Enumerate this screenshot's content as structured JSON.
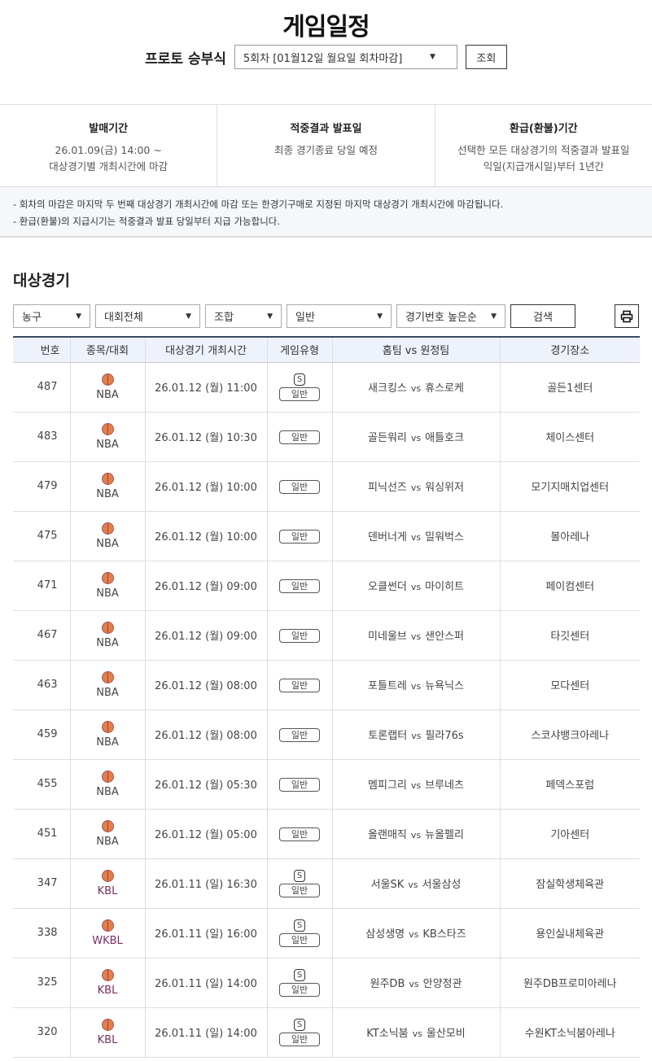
{
  "header": {
    "title": "게임일정",
    "round_label": "프로토 승부식",
    "round_value": "5회차 [01월12일 월요일 회차마감]",
    "query_button": "조회"
  },
  "info": [
    {
      "title": "발매기간",
      "lines": [
        "26.01.09(금) 14:00 ~",
        "대상경기별 개최시간에 마감"
      ]
    },
    {
      "title": "적중결과 발표일",
      "lines": [
        "최종 경기종료 당일 예정"
      ]
    },
    {
      "title": "환급(환불)기간",
      "lines": [
        "선택한 모든 대상경기의 적중결과 발표일",
        "익일(지급개시일)부터 1년간"
      ]
    }
  ],
  "notes": [
    "- 회차의 마감은 마지막 두 번째 대상경기 개최시간에 마감 또는 한경기구매로 지정된 마지막 대상경기 개최시간에 마감됩니다.",
    "- 환급(환불)의 지급시기는 적중결과 발표 당일부터 지급 가능합니다."
  ],
  "section_title": "대상경기",
  "filters": {
    "sport": "농구",
    "league": "대회전체",
    "combo": "조합",
    "type": "일반",
    "sort": "경기번호 높은순",
    "search_button": "검색"
  },
  "table": {
    "headers": [
      "번호",
      "종목/대회",
      "대상경기 개최시간",
      "게임유형",
      "홈팀 vs 원정팀",
      "경기장소"
    ],
    "vs": "vs",
    "s_badge": "S",
    "rows": [
      {
        "no": "487",
        "league": "NBA",
        "time": "26.01.12 (월) 11:00",
        "s": true,
        "type": "일반",
        "home": "새크킹스",
        "away": "휴스로케",
        "venue": "골든1센터"
      },
      {
        "no": "483",
        "league": "NBA",
        "time": "26.01.12 (월) 10:30",
        "s": false,
        "type": "일반",
        "home": "골든워리",
        "away": "애틀호크",
        "venue": "체이스센터"
      },
      {
        "no": "479",
        "league": "NBA",
        "time": "26.01.12 (월) 10:00",
        "s": false,
        "type": "일반",
        "home": "피닉선즈",
        "away": "워싱위저",
        "venue": "모기지매치업센터"
      },
      {
        "no": "475",
        "league": "NBA",
        "time": "26.01.12 (월) 10:00",
        "s": false,
        "type": "일반",
        "home": "덴버너게",
        "away": "밀워벅스",
        "venue": "볼아레나"
      },
      {
        "no": "471",
        "league": "NBA",
        "time": "26.01.12 (월) 09:00",
        "s": false,
        "type": "일반",
        "home": "오클썬더",
        "away": "마이히트",
        "venue": "페이컴센터"
      },
      {
        "no": "467",
        "league": "NBA",
        "time": "26.01.12 (월) 09:00",
        "s": false,
        "type": "일반",
        "home": "미네울브",
        "away": "샌안스퍼",
        "venue": "타깃센터"
      },
      {
        "no": "463",
        "league": "NBA",
        "time": "26.01.12 (월) 08:00",
        "s": false,
        "type": "일반",
        "home": "포틀트레",
        "away": "뉴욕닉스",
        "venue": "모다센터"
      },
      {
        "no": "459",
        "league": "NBA",
        "time": "26.01.12 (월) 08:00",
        "s": false,
        "type": "일반",
        "home": "토론랩터",
        "away": "필라76s",
        "venue": "스코샤뱅크아레나"
      },
      {
        "no": "455",
        "league": "NBA",
        "time": "26.01.12 (월) 05:30",
        "s": false,
        "type": "일반",
        "home": "멤피그리",
        "away": "브루네츠",
        "venue": "페덱스포럼"
      },
      {
        "no": "451",
        "league": "NBA",
        "time": "26.01.12 (월) 05:00",
        "s": false,
        "type": "일반",
        "home": "올랜매직",
        "away": "뉴올펠리",
        "venue": "기아센터"
      },
      {
        "no": "347",
        "league": "KBL",
        "time": "26.01.11 (일) 16:30",
        "s": true,
        "type": "일반",
        "home": "서울SK",
        "away": "서울삼성",
        "venue": "잠실학생체육관"
      },
      {
        "no": "338",
        "league": "WKBL",
        "time": "26.01.11 (일) 16:00",
        "s": true,
        "type": "일반",
        "home": "삼성생명",
        "away": "KB스타즈",
        "venue": "용인실내체육관"
      },
      {
        "no": "325",
        "league": "KBL",
        "time": "26.01.11 (일) 14:00",
        "s": true,
        "type": "일반",
        "home": "원주DB",
        "away": "안양정관",
        "venue": "원주DB프로미아레나"
      },
      {
        "no": "320",
        "league": "KBL",
        "time": "26.01.11 (일) 14:00",
        "s": true,
        "type": "일반",
        "home": "KT소닉붐",
        "away": "울산모비",
        "venue": "수원KT소닉붐아레나"
      }
    ]
  },
  "icons": {
    "league": "basketball-icon",
    "print": "printer-icon",
    "dropdown": "caret-down-icon"
  },
  "colors": {
    "header_border": "#3b4a63",
    "header_bg": "#eef2fa",
    "domestic_league": "#7a2d62"
  }
}
